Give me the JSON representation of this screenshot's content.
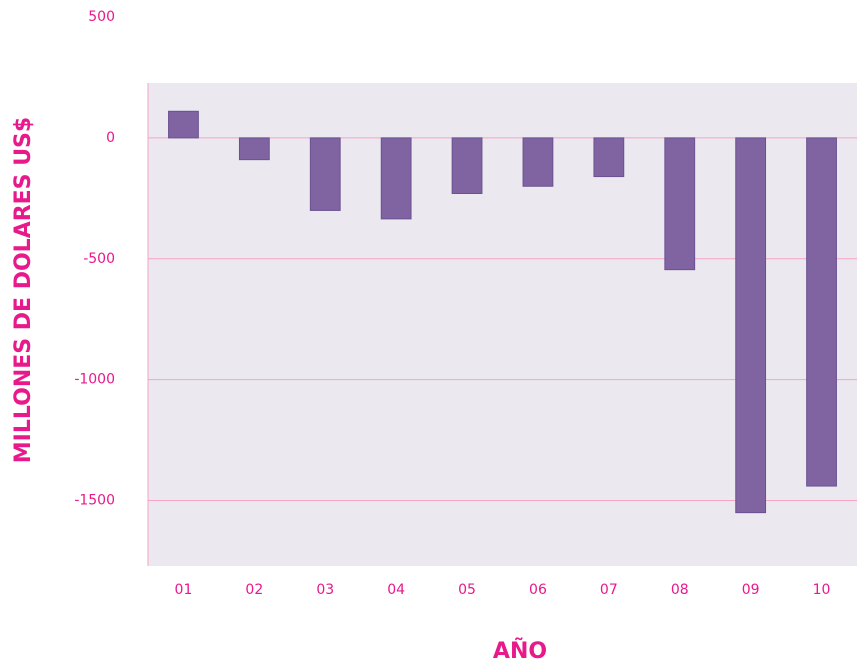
{
  "chart_data": {
    "type": "bar",
    "x_label": "AÑO",
    "y_label": "MILLONES DE DOLARES US$",
    "categories": [
      "01",
      "02",
      "03",
      "04",
      "05",
      "06",
      "07",
      "08",
      "09",
      "10"
    ],
    "values": [
      110,
      -90,
      -300,
      -335,
      -230,
      -200,
      -160,
      -545,
      -1550,
      -1440
    ],
    "color": "#8064a2",
    "ylim": [
      -1750,
      500
    ],
    "yticks": [
      -1500,
      -1000,
      -500,
      0,
      500
    ],
    "grid": true
  }
}
